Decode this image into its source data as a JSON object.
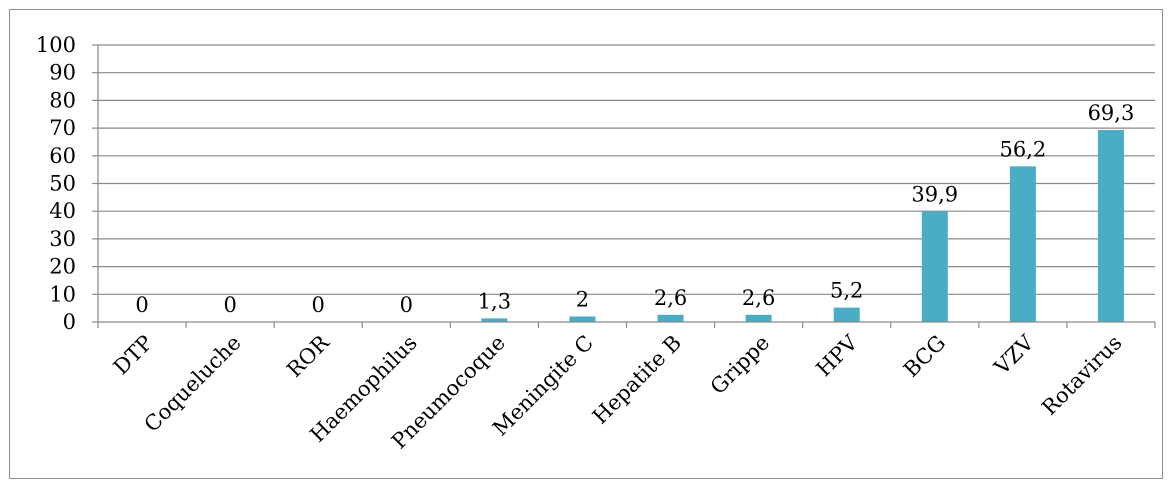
{
  "chart_data": {
    "type": "bar",
    "title": "",
    "xlabel": "",
    "ylabel": "",
    "categories": [
      "DTP",
      "Coqueluche",
      "ROR",
      "Haemophilus",
      "Pneumocoque",
      "Meningite C",
      "Hepatite B",
      "Grippe",
      "HPV",
      "BCG",
      "VZV",
      "Rotavirus"
    ],
    "values": [
      0,
      0,
      0,
      0,
      1.3,
      2,
      2.6,
      2.6,
      5.2,
      39.9,
      56.2,
      69.3
    ],
    "data_labels": [
      "0",
      "0",
      "0",
      "0",
      "1,3",
      "2",
      "2,6",
      "2,6",
      "5,2",
      "39,9",
      "56,2",
      "69,3"
    ],
    "ylim": [
      0,
      100
    ],
    "yticks": [
      0,
      10,
      20,
      30,
      40,
      50,
      60,
      70,
      80,
      90,
      100
    ],
    "grid": true,
    "legend": "none",
    "colors": {
      "bar": "#4bacc6",
      "grid": "#8a8a8a",
      "axis": "#8a8a8a",
      "border": "#8c8c8c"
    }
  }
}
